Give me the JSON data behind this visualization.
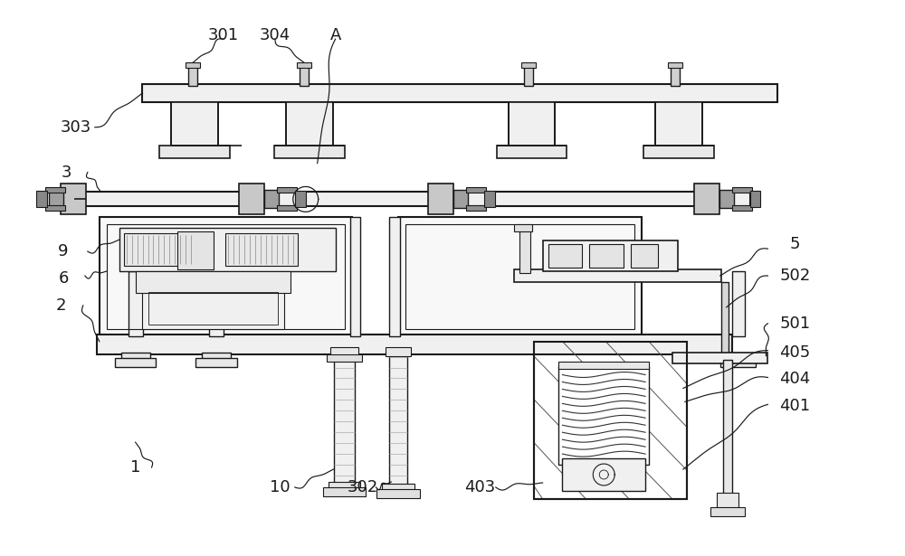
{
  "bg_color": "#ffffff",
  "line_color": "#1a1a1a",
  "fig_width": 10.0,
  "fig_height": 6.15,
  "dpi": 100,
  "label_fontsize": 13,
  "label_color": "#1a1a1a"
}
